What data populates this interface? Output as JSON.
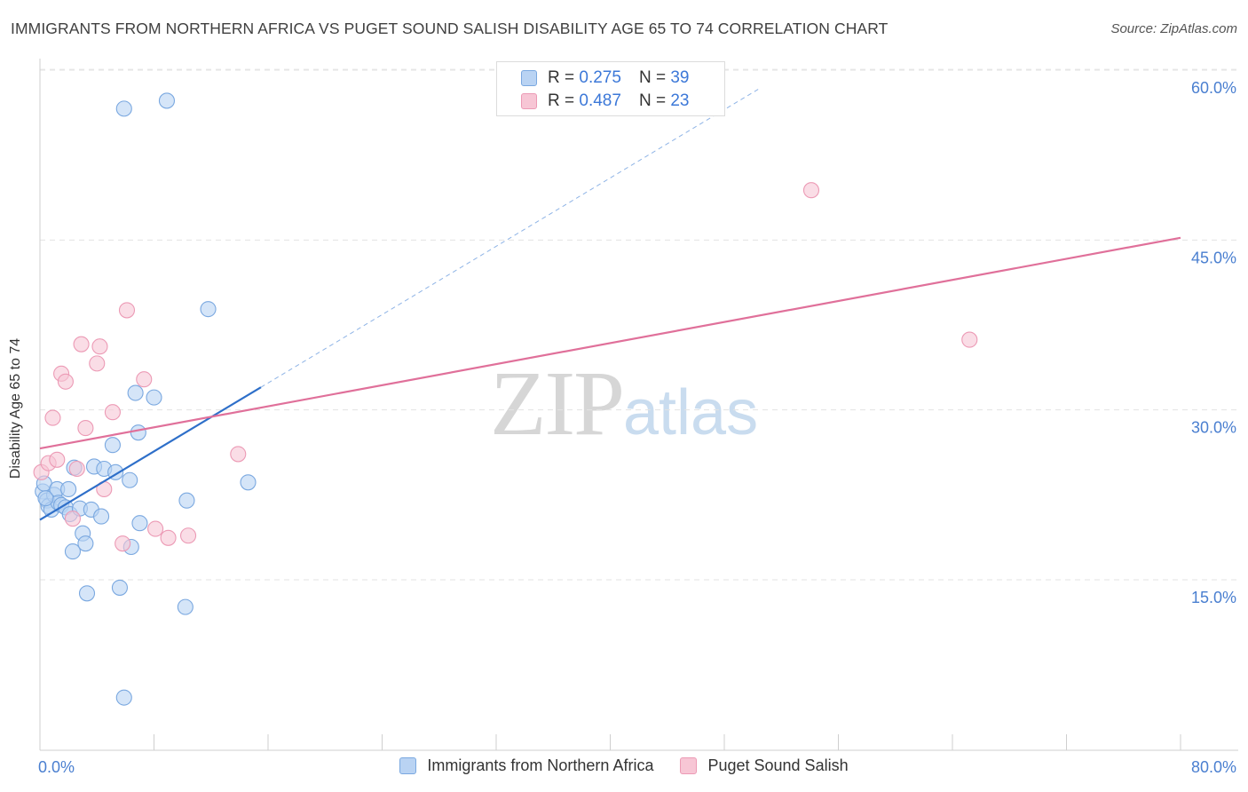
{
  "header": {
    "title": "IMMIGRANTS FROM NORTHERN AFRICA VS PUGET SOUND SALISH DISABILITY AGE 65 TO 74 CORRELATION CHART",
    "source": "Source: ZipAtlas.com"
  },
  "watermark": {
    "zip": "ZIP",
    "atlas": "atlas"
  },
  "legend_top": {
    "rows": [
      {
        "r_label": "R =",
        "r_value": "0.275",
        "n_label": "N =",
        "n_value": "39"
      },
      {
        "r_label": "R =",
        "r_value": "0.487",
        "n_label": "N =",
        "n_value": "23"
      }
    ]
  },
  "chart_data": {
    "type": "scatter",
    "title": "IMMIGRANTS FROM NORTHERN AFRICA VS PUGET SOUND SALISH DISABILITY AGE 65 TO 74 CORRELATION CHART",
    "xlabel": "",
    "ylabel": "Disability Age 65 to 74",
    "xlim": [
      0,
      80
    ],
    "ylim": [
      0,
      63
    ],
    "x_tick_labels": [
      "0.0%",
      "80.0%"
    ],
    "y_ticks": [
      15,
      30,
      45,
      60
    ],
    "y_tick_labels": [
      "15.0%",
      "30.0%",
      "45.0%",
      "60.0%"
    ],
    "grid": true,
    "legend_position": "bottom",
    "colors": {
      "blue_fill": "#b9d3f3",
      "blue_stroke": "#7aa8e0",
      "blue_line": "#2e6fc9",
      "pink_fill": "#f7c6d5",
      "pink_stroke": "#ec9ab5",
      "pink_line": "#e0709a",
      "tick_label": "#4a7fd0"
    },
    "series": [
      {
        "name": "Immigrants from Northern Africa",
        "r": 0.275,
        "n": 39,
        "trend": {
          "x": [
            0,
            15.5
          ],
          "y": [
            20.3,
            32.0
          ]
        },
        "trend_extension": {
          "x": [
            15.5,
            50.5
          ],
          "y": [
            32.0,
            58.4
          ]
        },
        "points": [
          [
            0.2,
            22.8
          ],
          [
            0.3,
            23.5
          ],
          [
            0.5,
            22.0
          ],
          [
            0.6,
            21.5
          ],
          [
            0.8,
            21.2
          ],
          [
            1.0,
            22.5
          ],
          [
            1.2,
            23.0
          ],
          [
            1.3,
            21.8
          ],
          [
            1.5,
            21.6
          ],
          [
            1.8,
            21.4
          ],
          [
            2.0,
            23.0
          ],
          [
            2.1,
            20.8
          ],
          [
            2.3,
            17.5
          ],
          [
            2.4,
            24.9
          ],
          [
            2.8,
            21.3
          ],
          [
            3.0,
            19.1
          ],
          [
            3.2,
            18.2
          ],
          [
            3.3,
            13.8
          ],
          [
            3.6,
            21.2
          ],
          [
            3.8,
            25.0
          ],
          [
            4.3,
            20.6
          ],
          [
            4.5,
            24.8
          ],
          [
            5.1,
            26.9
          ],
          [
            5.3,
            24.5
          ],
          [
            5.6,
            14.3
          ],
          [
            5.9,
            4.6
          ],
          [
            5.9,
            56.6
          ],
          [
            6.3,
            23.8
          ],
          [
            6.4,
            17.9
          ],
          [
            6.7,
            31.5
          ],
          [
            6.9,
            28.0
          ],
          [
            7.0,
            20.0
          ],
          [
            8.0,
            31.1
          ],
          [
            8.9,
            57.3
          ],
          [
            10.2,
            12.6
          ],
          [
            10.3,
            22.0
          ],
          [
            11.8,
            38.9
          ],
          [
            14.6,
            23.6
          ],
          [
            0.4,
            22.2
          ]
        ]
      },
      {
        "name": "Puget Sound Salish",
        "r": 0.487,
        "n": 23,
        "trend": {
          "x": [
            0,
            80
          ],
          "y": [
            26.6,
            45.2
          ]
        },
        "points": [
          [
            0.1,
            24.5
          ],
          [
            0.6,
            25.3
          ],
          [
            0.9,
            29.3
          ],
          [
            1.2,
            25.6
          ],
          [
            1.5,
            33.2
          ],
          [
            1.8,
            32.5
          ],
          [
            2.3,
            20.4
          ],
          [
            2.6,
            24.8
          ],
          [
            2.9,
            35.8
          ],
          [
            3.2,
            28.4
          ],
          [
            4.0,
            34.1
          ],
          [
            4.2,
            35.6
          ],
          [
            4.5,
            23.0
          ],
          [
            5.1,
            29.8
          ],
          [
            5.8,
            18.2
          ],
          [
            6.1,
            38.8
          ],
          [
            7.3,
            32.7
          ],
          [
            8.1,
            19.5
          ],
          [
            9.0,
            18.7
          ],
          [
            10.4,
            18.9
          ],
          [
            13.9,
            26.1
          ],
          [
            54.1,
            49.4
          ],
          [
            65.2,
            36.2
          ]
        ]
      }
    ]
  }
}
